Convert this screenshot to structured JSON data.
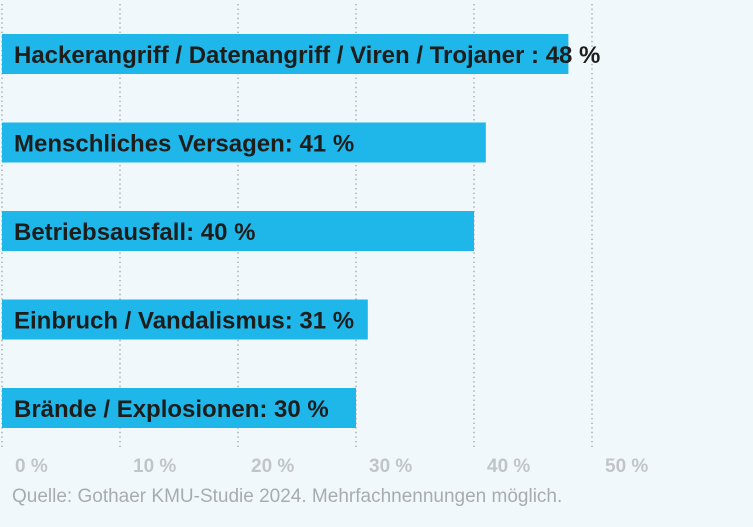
{
  "chart_data": {
    "type": "bar",
    "orientation": "horizontal",
    "categories": [
      "Hackerangriff / Datenangriff / Viren / Trojaner",
      "Menschliches Versagen",
      "Betriebsausfall",
      "Einbruch / Vandalismus",
      "Brände / Explosionen"
    ],
    "values": [
      48,
      41,
      40,
      31,
      30
    ],
    "data_labels": [
      "Hackerangriff / Datenangriff / Viren / Trojaner : 48 %",
      "Menschliches Versagen: 41 %",
      "Betriebsausfall: 40 %",
      "Einbruch / Vandalismus: 31 %",
      "Brände / Explosionen: 30 %"
    ],
    "xticks": [
      "0 %",
      "10 %",
      "20 %",
      "30 %",
      "40 %",
      "50 %"
    ],
    "xlim": [
      0,
      60
    ],
    "grid": true,
    "bar_color": "#1fb6ea"
  },
  "source": "Quelle: Gothaer KMU-Studie 2024. Mehrfachnennungen möglich."
}
